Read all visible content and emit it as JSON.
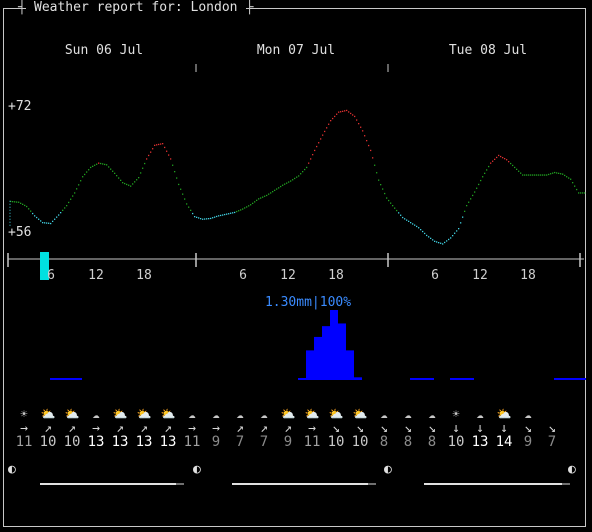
{
  "title": "Weather report for: London",
  "days": [
    "Sun 06 Jul",
    "Mon 07 Jul",
    "Tue 08 Jul"
  ],
  "temp_axis": {
    "max_label": "+72",
    "min_label": "+56",
    "max": 72,
    "min": 56
  },
  "chart_data": {
    "type": "line",
    "title": "",
    "ylabel": "",
    "ylim": [
      56,
      72
    ],
    "x_hours": [
      0,
      1,
      2,
      3,
      4,
      5,
      6,
      7,
      8,
      9,
      10,
      11,
      12,
      13,
      14,
      15,
      16,
      17,
      18,
      19,
      20,
      21,
      22,
      23,
      24,
      25,
      26,
      27,
      28,
      29,
      30,
      31,
      32,
      33,
      34,
      35,
      36,
      37,
      38,
      39,
      40,
      41,
      42,
      43,
      44,
      45,
      46,
      47,
      48,
      49,
      50,
      51,
      52,
      53,
      54,
      55,
      56,
      57,
      58,
      59,
      60,
      61,
      62,
      63,
      64,
      65,
      66,
      67,
      68,
      69,
      70,
      71
    ],
    "series": [
      {
        "values": [
          60.5,
          60.4,
          59.9,
          58.8,
          58.0,
          57.9,
          58.9,
          60.0,
          61.5,
          63.4,
          64.5,
          65.0,
          64.8,
          63.8,
          62.7,
          62.3,
          63.3,
          65.5,
          67.1,
          67.3,
          65.5,
          62.5,
          60.2,
          58.7,
          58.4,
          58.5,
          58.8,
          59.0,
          59.2,
          59.6,
          60.1,
          60.8,
          61.2,
          61.8,
          62.4,
          62.9,
          63.5,
          64.5,
          66.5,
          68.3,
          70.0,
          71.0,
          71.2,
          70.5,
          68.8,
          66.5,
          63.0,
          60.9,
          59.7,
          58.6,
          58.0,
          57.4,
          56.5,
          55.8,
          55.5,
          56.2,
          57.3,
          60.0,
          61.6,
          63.4,
          65.0,
          65.9,
          65.4,
          64.5,
          63.6,
          63.6,
          63.6,
          63.6,
          63.9,
          63.7,
          63.1,
          61.5
        ],
        "color_scale": {
          "cold": "#40d0e0",
          "mild": "#20a020",
          "warm": "#e03030"
        }
      }
    ],
    "hour_ticks": [
      "6",
      "12",
      "18",
      "6",
      "12",
      "18",
      "6",
      "12",
      "18"
    ],
    "current_marker_color": "#00e0e0"
  },
  "precipitation": {
    "label": "1.30mm|100%",
    "max_mm": 1.3,
    "color": "#0000ff",
    "hourly_mm": [
      0,
      0,
      0,
      0,
      0,
      0.01,
      0.03,
      0.02,
      0.01,
      0,
      0,
      0,
      0,
      0,
      0,
      0,
      0,
      0,
      0,
      0,
      0,
      0,
      0,
      0,
      0,
      0,
      0,
      0,
      0,
      0,
      0,
      0,
      0,
      0,
      0,
      0,
      0.03,
      0.55,
      0.8,
      1.0,
      1.3,
      1.05,
      0.55,
      0.05,
      0,
      0,
      0,
      0,
      0,
      0,
      0.02,
      0.03,
      0.02,
      0,
      0,
      0.02,
      0.03,
      0.02,
      0,
      0,
      0,
      0,
      0,
      0,
      0,
      0,
      0,
      0,
      0.01,
      0.03,
      0.02,
      0.01
    ]
  },
  "wind": {
    "icons": [
      "☀",
      "⛅",
      "⛅",
      "☁",
      "⛅",
      "⛅",
      "⛅",
      "☁",
      "☁",
      "☁",
      "☁",
      "⛅",
      "⛅",
      "⛅",
      "⛅",
      "☁",
      "☁",
      "☁",
      "☀",
      "☁",
      "⛅",
      "☁"
    ],
    "arrows": [
      "→",
      "↗",
      "↗",
      "→",
      "↗",
      "↗",
      "↗",
      "→",
      "→",
      "↗",
      "↗",
      "↗",
      "→",
      "↘",
      "↘",
      "↘",
      "↘",
      "↘",
      "↓",
      "↓",
      "↓",
      "↘",
      "↘"
    ],
    "speeds": [
      "11",
      "10",
      "10",
      "13",
      "13",
      "13",
      "13",
      "11",
      "9",
      "7",
      "7",
      "9",
      "11",
      "10",
      "10",
      "8",
      "8",
      "8",
      "10",
      "13",
      "14",
      "9",
      "7"
    ],
    "speed_colors": [
      "#a0a0a0",
      "#c8c8c8",
      "#c8c8c8",
      "#ffffff",
      "#ffffff",
      "#ffffff",
      "#ffffff",
      "#a0a0a0",
      "#8a8a8a",
      "#8a8a8a",
      "#8a8a8a",
      "#8a8a8a",
      "#a0a0a0",
      "#c8c8c8",
      "#c8c8c8",
      "#8a8a8a",
      "#8a8a8a",
      "#8a8a8a",
      "#c8c8c8",
      "#ffffff",
      "#ffffff",
      "#8a8a8a",
      "#8a8a8a"
    ]
  },
  "moon": {
    "icons": [
      "◐",
      "◐",
      "◐",
      "◐"
    ]
  }
}
